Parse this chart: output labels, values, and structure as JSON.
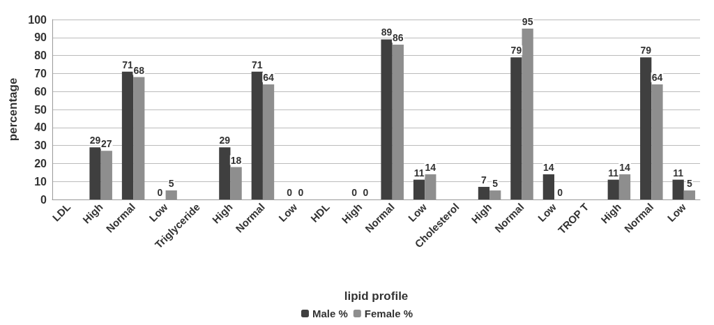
{
  "chart_data": {
    "type": "bar",
    "xlabel": "lipid profile",
    "ylabel": "percentage",
    "categories": [
      "LDL",
      "High",
      "Normal",
      "Low",
      "Triglyceride",
      "High",
      "Normal",
      "Low",
      "HDL",
      "High",
      "Normal",
      "Low",
      "Cholesterol",
      "High",
      "Normal",
      "Low",
      "TROP T",
      "High",
      "Normal",
      "Low"
    ],
    "series": [
      {
        "name": "Male %",
        "color": "#3f3f3f",
        "values": [
          null,
          29,
          71,
          0,
          null,
          29,
          71,
          0,
          null,
          0,
          89,
          11,
          null,
          7,
          79,
          14,
          null,
          11,
          79,
          11
        ]
      },
      {
        "name": "Female %",
        "color": "#8e8e8e",
        "values": [
          null,
          27,
          68,
          5,
          null,
          18,
          64,
          0,
          null,
          0,
          86,
          14,
          null,
          5,
          95,
          0,
          null,
          14,
          64,
          5
        ]
      }
    ],
    "ylim": [
      0,
      100
    ],
    "yticks": [
      0,
      10,
      20,
      30,
      40,
      50,
      60,
      70,
      80,
      90,
      100
    ],
    "grid": "y",
    "legend": "bottom",
    "data_labels": true
  }
}
